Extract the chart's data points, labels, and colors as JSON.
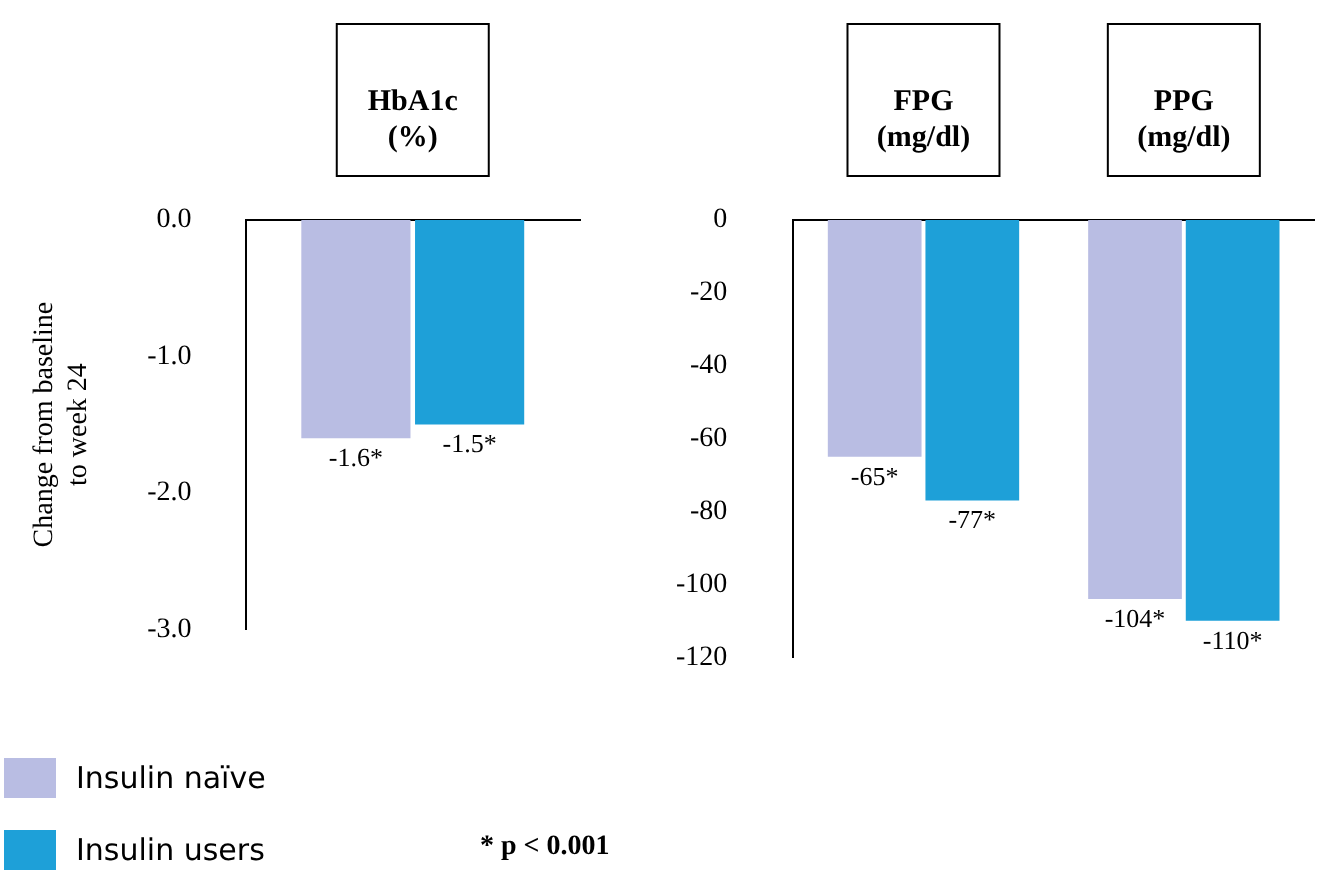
{
  "chart_data": [
    {
      "type": "bar",
      "categories": [
        "HbA1c\n(%)"
      ],
      "ylabel": "Change from baseline to week 24",
      "ylim": [
        -3,
        0
      ],
      "yticks": [
        {
          "value": 0,
          "label": "0.0"
        },
        {
          "value": -1,
          "label": "-1.0"
        },
        {
          "value": -2,
          "label": "-2.0"
        },
        {
          "value": -3,
          "label": "-3.0"
        }
      ],
      "grid": false,
      "legend": "bottom left",
      "series": [
        {
          "name": "Insulin naïve",
          "color": "#b9bde3",
          "values": [
            -1.6
          ],
          "value_labels": [
            "-1.6*"
          ]
        },
        {
          "name": "Insulin users",
          "color": "#1ea0d8",
          "values": [
            -1.5
          ],
          "value_labels": [
            "-1.5*"
          ]
        }
      ]
    },
    {
      "type": "bar",
      "categories": [
        "FPG\n(mg/dl)",
        "PPG\n(mg/dl)"
      ],
      "ylim": [
        -120,
        0
      ],
      "yticks": [
        0,
        -20,
        -40,
        -60,
        -80,
        -100,
        -120
      ],
      "grid": false,
      "legend": false,
      "annotations": [
        "* p < 0.001"
      ],
      "series": [
        {
          "color": "#b9bde3",
          "values": [
            -65,
            -104
          ],
          "value_labels": [
            "-65*",
            "-104*"
          ]
        },
        {
          "color": "#1ea0d8",
          "values": [
            -77,
            -110
          ],
          "value_labels": [
            "-77*",
            "-110*"
          ]
        }
      ]
    }
  ]
}
